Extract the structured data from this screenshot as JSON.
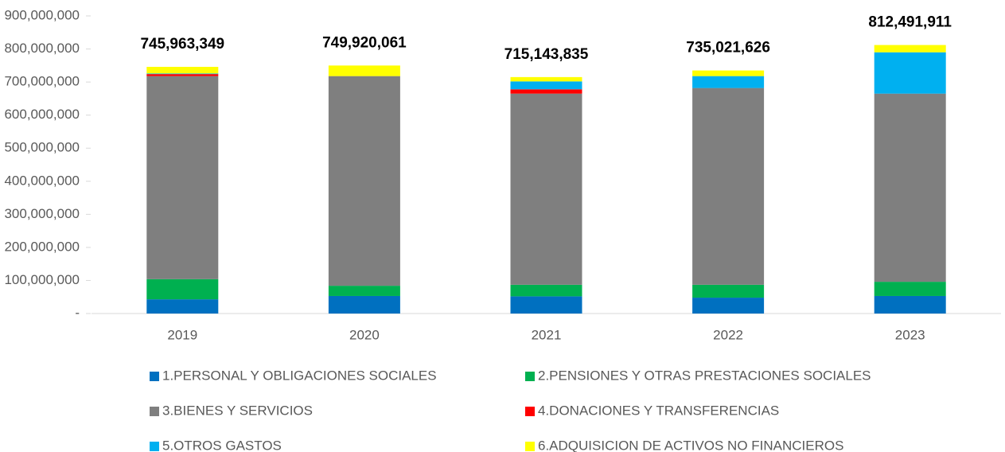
{
  "chart_data": {
    "type": "stacked_bar",
    "categories": [
      "2019",
      "2020",
      "2021",
      "2022",
      "2023"
    ],
    "series": [
      {
        "name": "1.PERSONAL Y OBLIGACIONES SOCIALES",
        "color": "#0070c0",
        "values": [
          43000000,
          53000000,
          52000000,
          48000000,
          53000000
        ]
      },
      {
        "name": "2.PENSIONES Y OTRAS PRESTACIONES SOCIALES",
        "color": "#00b050",
        "values": [
          61000000,
          31000000,
          35000000,
          39000000,
          43000000
        ]
      },
      {
        "name": "3.BIENES Y SERVICIOS",
        "color": "#7f7f7f",
        "values": [
          614000000,
          634000000,
          578000000,
          595000000,
          569000000
        ]
      },
      {
        "name": "4.DONACIONES Y TRANSFERENCIAS",
        "color": "#ff0000",
        "values": [
          6000000,
          0,
          13000000,
          0,
          0
        ]
      },
      {
        "name": "5.OTROS GASTOS",
        "color": "#00b0f0",
        "values": [
          2000000,
          0,
          24000000,
          36000000,
          125000000
        ]
      },
      {
        "name": "6.ADQUISICION DE ACTIVOS NO FINANCIEROS",
        "color": "#ffff00",
        "values": [
          20000000,
          32000000,
          13000000,
          17000000,
          22000000
        ]
      }
    ],
    "totals": {
      "values": [
        745963349,
        749920061,
        715143835,
        735021626,
        812491911
      ],
      "value_labels": [
        "745,963,349",
        "749,920,061",
        "715,143,835",
        "735,021,626",
        "812,491,911"
      ]
    },
    "ylim": [
      0,
      900000000
    ],
    "yticks": [
      {
        "value": 0,
        "label": "-"
      },
      {
        "value": 100000000,
        "label": "100,000,000"
      },
      {
        "value": 200000000,
        "label": "200,000,000"
      },
      {
        "value": 300000000,
        "label": "300,000,000"
      },
      {
        "value": 400000000,
        "label": "400,000,000"
      },
      {
        "value": 500000000,
        "label": "500,000,000"
      },
      {
        "value": 600000000,
        "label": "600,000,000"
      },
      {
        "value": 700000000,
        "label": "700,000,000"
      },
      {
        "value": 800000000,
        "label": "800,000,000"
      },
      {
        "value": 900000000,
        "label": "900,000,000"
      }
    ],
    "legend": "bottom"
  }
}
